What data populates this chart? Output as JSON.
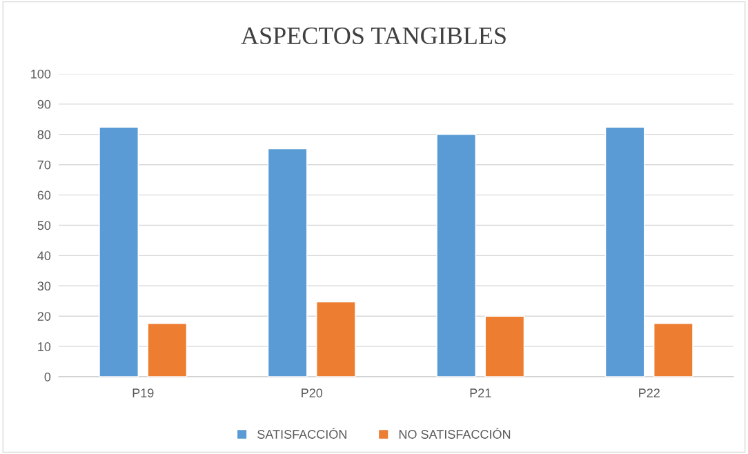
{
  "chart_data": {
    "type": "bar",
    "title": "ASPECTOS TANGIBLES",
    "categories": [
      "P19",
      "P20",
      "P21",
      "P22"
    ],
    "series": [
      {
        "name": "SATISFACCIÓN",
        "color": "#5b9bd5",
        "values": [
          82.4,
          75.3,
          80,
          82.4
        ]
      },
      {
        "name": "NO SATISFACCIÓN",
        "color": "#ed7d31",
        "values": [
          17.6,
          24.7,
          20,
          17.6
        ]
      }
    ],
    "ylim": [
      0,
      100
    ],
    "yticks": [
      0,
      10,
      20,
      30,
      40,
      50,
      60,
      70,
      80,
      90,
      100
    ],
    "grid": "y",
    "legend": "bottom"
  }
}
